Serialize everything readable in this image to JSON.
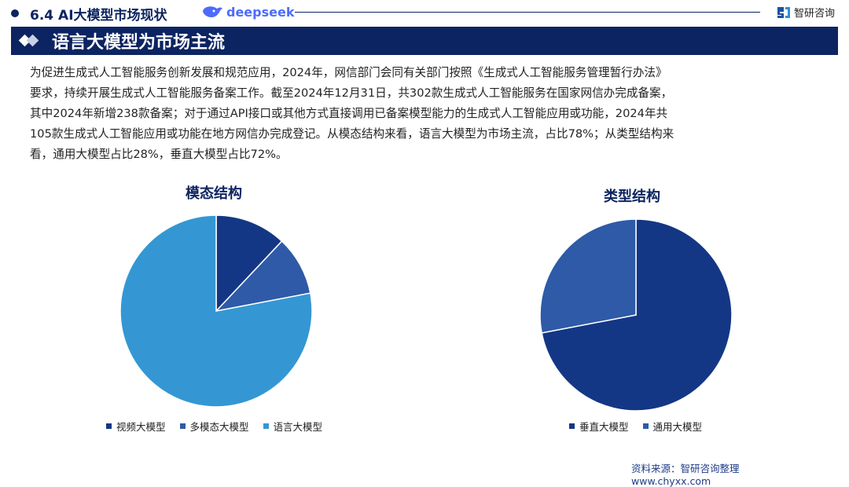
{
  "header": {
    "section": "6.4 AI大模型市场现状",
    "partner_logo": "deepseek",
    "brand": "智研咨询"
  },
  "title": "语言大模型为市场主流",
  "paragraph": [
    "为促进生成式人工智能服务创新发展和规范应用，2024年，网信部门会同有关部门按照《生成式人工智能服务管理暂行办法》",
    "要求，持续开展生成式人工智能服务备案工作。截至2024年12月31日，共302款生成式人工智能服务在国家网信办完成备案，",
    "其中2024年新增238款备案；对于通过API接口或其他方式直接调用已备案模型能力的生成式人工智能应用或功能，2024年共",
    "105款生成式人工智能应用或功能在地方网信办完成登记。从模态结构来看，语言大模型为市场主流，占比78%；从类型结构来",
    "看，通用大模型占比28%，垂直大模型占比72%。"
  ],
  "chart_data": [
    {
      "type": "pie",
      "title": "模态结构",
      "categories": [
        "视频大模型",
        "多模态大模型",
        "语言大模型"
      ],
      "values": [
        12,
        10,
        78
      ],
      "colors": [
        "#143785",
        "#2e5aa8",
        "#3497d3"
      ],
      "legend": "bottom"
    },
    {
      "type": "pie",
      "title": "类型结构",
      "categories": [
        "垂直大模型",
        "通用大模型"
      ],
      "values": [
        72,
        28
      ],
      "colors": [
        "#143785",
        "#2e5aa8"
      ],
      "legend": "bottom"
    }
  ],
  "footer": {
    "source": "资料来源：智研咨询整理",
    "url": "www.chyxx.com"
  }
}
